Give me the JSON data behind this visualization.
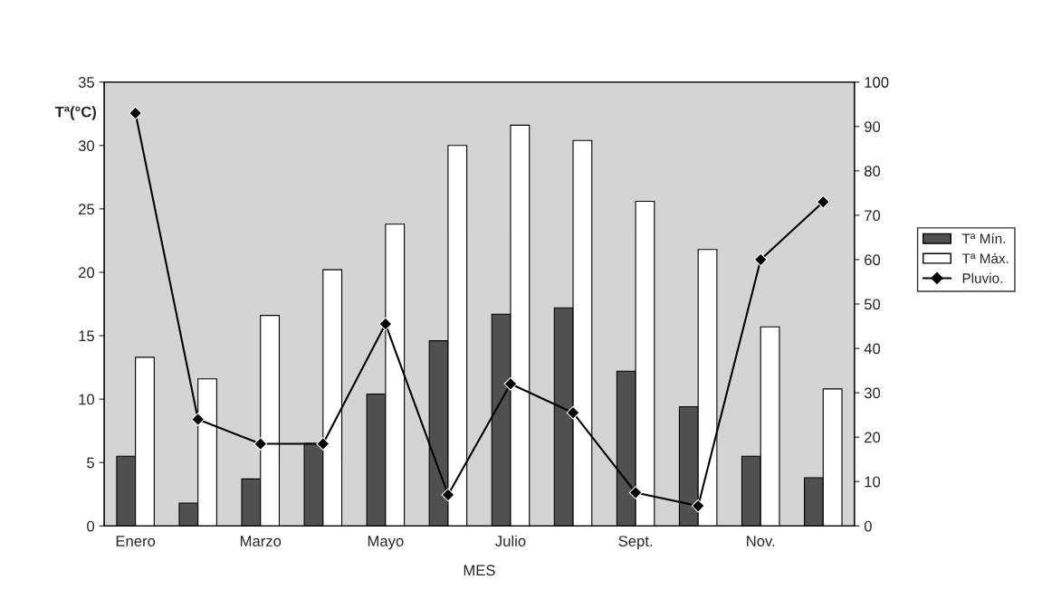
{
  "chart_data": {
    "type": "bar",
    "categories": [
      "Enero",
      null,
      "Marzo",
      null,
      "Mayo",
      null,
      "Julio",
      null,
      "Sept.",
      null,
      "Nov.",
      null
    ],
    "xlabel": "MES",
    "ylabel": "Tª(°C)",
    "series": [
      {
        "name": "Tª Mín.",
        "color": "#505050",
        "values": [
          5.5,
          1.8,
          3.7,
          6.5,
          10.4,
          14.6,
          16.7,
          17.2,
          12.2,
          9.4,
          5.5,
          3.8
        ]
      },
      {
        "name": "Tª Máx.",
        "color": "#ffffff",
        "values": [
          13.3,
          11.6,
          16.6,
          20.2,
          23.8,
          30.0,
          31.6,
          30.4,
          25.6,
          21.8,
          15.7,
          10.8
        ]
      },
      {
        "name": "Pluvio.",
        "type": "line",
        "axis": "y2",
        "color": "#000000",
        "marker": "diamond",
        "values": [
          93,
          24,
          18.5,
          18.5,
          45.5,
          7,
          32,
          25.5,
          7.5,
          4.5,
          60,
          73
        ]
      }
    ],
    "ylim": [
      0,
      35
    ],
    "yticks": [
      0,
      5,
      10,
      15,
      20,
      25,
      30,
      35
    ],
    "y2lim": [
      0,
      100
    ],
    "y2ticks": [
      0,
      10,
      20,
      30,
      40,
      50,
      60,
      70,
      80,
      90,
      100
    ],
    "grid": false,
    "legend": "right"
  }
}
